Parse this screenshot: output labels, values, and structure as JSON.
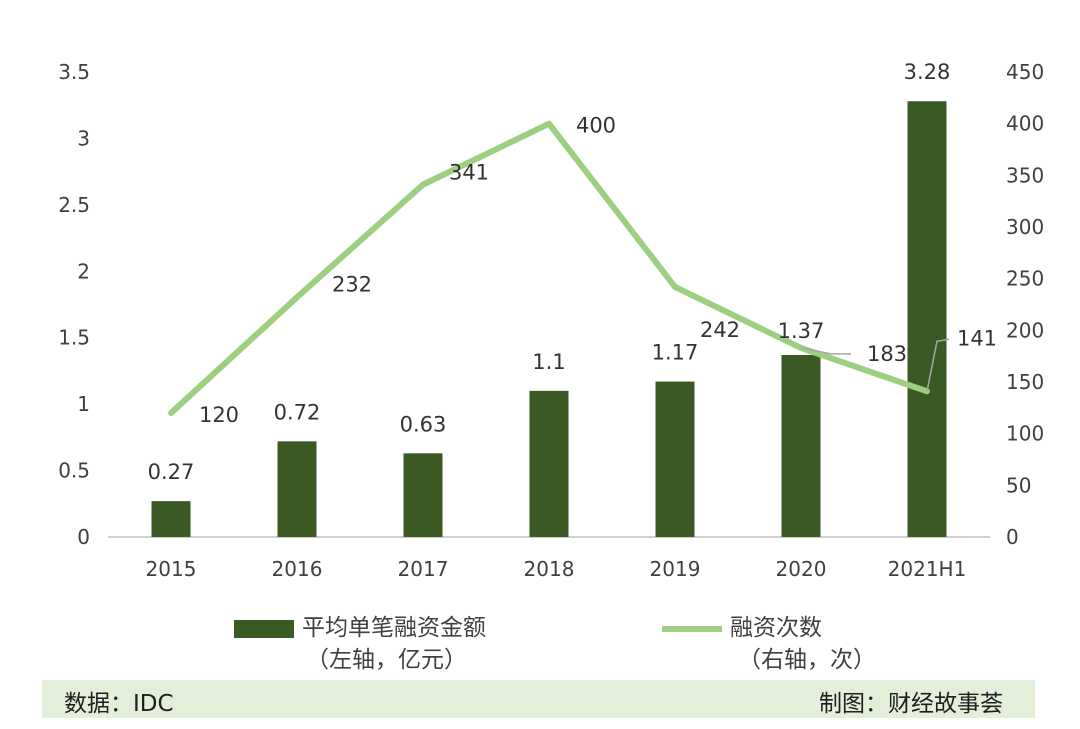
{
  "chart_data": {
    "type": "bar+line",
    "categories": [
      "2015",
      "2016",
      "2017",
      "2018",
      "2019",
      "2020",
      "2021H1"
    ],
    "series": [
      {
        "name": "平均单笔融资金额",
        "axis_note": "（左轴，亿元）",
        "type": "bar",
        "axis": "left",
        "values": [
          0.27,
          0.72,
          0.63,
          1.1,
          1.17,
          1.37,
          3.28
        ],
        "labels": [
          "0.27",
          "0.72",
          "0.63",
          "1.1",
          "1.17",
          "1.37",
          "3.28"
        ],
        "color": "#3b5a23"
      },
      {
        "name": "融资次数",
        "axis_note": "（右轴，次）",
        "type": "line",
        "axis": "right",
        "values": [
          120,
          232,
          341,
          400,
          242,
          183,
          141
        ],
        "labels": [
          "120",
          "232",
          "341",
          "400",
          "242",
          "183",
          "141"
        ],
        "color": "#9ccf80"
      }
    ],
    "left_axis": {
      "ylim": [
        0,
        3.5
      ],
      "ticks": [
        "0",
        "0.5",
        "1",
        "1.5",
        "2",
        "2.5",
        "3",
        "3.5"
      ]
    },
    "right_axis": {
      "ylim": [
        0,
        450
      ],
      "ticks": [
        "0",
        "50",
        "100",
        "150",
        "200",
        "250",
        "300",
        "350",
        "400",
        "450"
      ]
    },
    "grid": false,
    "legend_position": "bottom"
  },
  "footer": {
    "source": "数据：IDC",
    "credit": "制图：财经故事荟"
  }
}
